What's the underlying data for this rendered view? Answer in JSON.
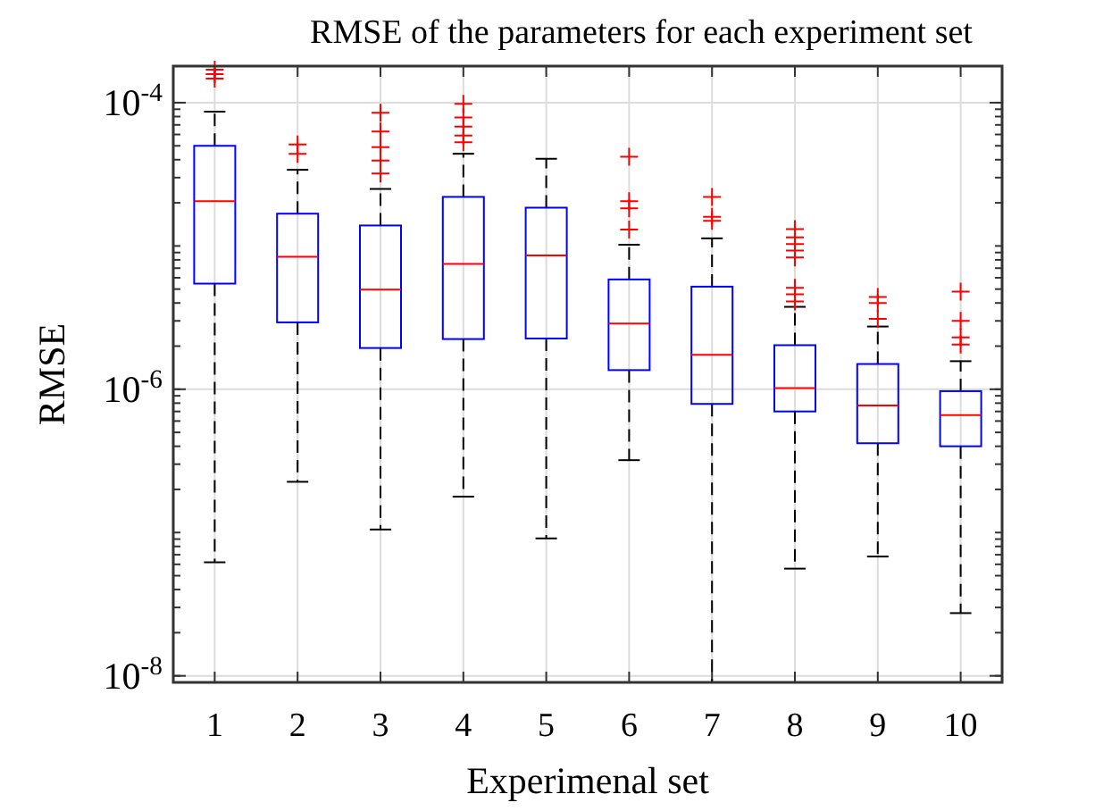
{
  "chart_data": {
    "type": "box",
    "title": "RMSE of the parameters for each experiment set",
    "xlabel": "Experimenal set",
    "ylabel": "RMSE",
    "log": "y",
    "grid": true,
    "categories": [
      "1",
      "2",
      "3",
      "4",
      "5",
      "6",
      "7",
      "8",
      "9",
      "10"
    ],
    "ylim": [
      9e-09,
      0.00018
    ],
    "yticks": [
      {
        "value": 1e-08,
        "label": "10$^{-8}$"
      },
      {
        "value": 1e-06,
        "label": "10$^{-6}$"
      },
      {
        "value": 0.0001,
        "label": "10$^{-4}$"
      }
    ],
    "boxes": [
      {
        "low": 6.2e-08,
        "q1": 5.46e-06,
        "median": 2.05e-05,
        "q3": 5e-05,
        "high": 8.66e-05,
        "outliers": [
          0.00017,
          0.000158,
          0.000147
        ]
      },
      {
        "low": 2.26e-07,
        "q1": 2.93e-06,
        "median": 8.4e-06,
        "q3": 1.68e-05,
        "high": 3.4e-05,
        "outliers": [
          5.1e-05,
          4.4e-05
        ]
      },
      {
        "low": 1.05e-07,
        "q1": 1.94e-06,
        "median": 4.96e-06,
        "q3": 1.39e-05,
        "high": 2.5e-05,
        "outliers": [
          8.5e-05,
          6.3e-05,
          4.9e-05,
          3.95e-05,
          3.2e-05
        ]
      },
      {
        "low": 1.78e-07,
        "q1": 2.24e-06,
        "median": 7.5e-06,
        "q3": 2.2e-05,
        "high": 4.4e-05,
        "outliers": [
          9.8e-05,
          7.9e-05,
          6.8e-05,
          5.9e-05,
          5.3e-05
        ]
      },
      {
        "low": 9.1e-08,
        "q1": 2.26e-06,
        "median": 8.6e-06,
        "q3": 1.85e-05,
        "high": 4.06e-05
      },
      {
        "low": 3.2e-07,
        "q1": 1.36e-06,
        "median": 2.87e-06,
        "q3": 5.84e-06,
        "high": 1.02e-05,
        "outliers": [
          4.2e-05,
          2.05e-05,
          1.83e-05,
          1.3e-05
        ]
      },
      {
        "low": 9e-09,
        "q1": 7.9e-07,
        "median": 1.74e-06,
        "q3": 5.2e-06,
        "high": 1.13e-05,
        "outliers": [
          2.2e-05,
          1.6e-05,
          1.5e-05
        ]
      },
      {
        "low": 5.6e-08,
        "q1": 7e-07,
        "median": 1.02e-06,
        "q3": 2.03e-06,
        "high": 3.76e-06,
        "outliers": [
          1.31e-05,
          1.15e-05,
          1.03e-05,
          9.3e-06,
          8.3e-06,
          5.1e-06,
          4.6e-06,
          4.1e-06
        ]
      },
      {
        "low": 6.8e-08,
        "q1": 4.2e-07,
        "median": 7.7e-07,
        "q3": 1.5e-06,
        "high": 2.74e-06,
        "outliers": [
          4.4e-06,
          4e-06,
          3.1e-06
        ]
      },
      {
        "low": 2.74e-08,
        "q1": 4e-07,
        "median": 6.6e-07,
        "q3": 9.7e-07,
        "high": 1.57e-06,
        "outliers": [
          4.8e-06,
          3e-06,
          2.3e-06,
          2.05e-06
        ]
      }
    ]
  }
}
